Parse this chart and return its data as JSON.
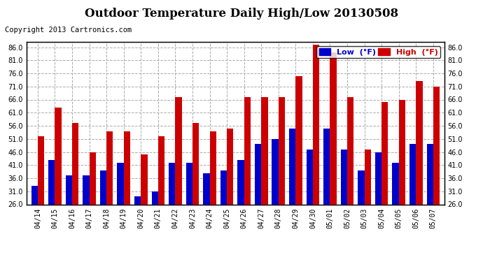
{
  "title": "Outdoor Temperature Daily High/Low 20130508",
  "copyright": "Copyright 2013 Cartronics.com",
  "legend_low": "Low  (°F)",
  "legend_high": "High  (°F)",
  "dates": [
    "04/14",
    "04/15",
    "04/16",
    "04/17",
    "04/18",
    "04/19",
    "04/20",
    "04/21",
    "04/22",
    "04/23",
    "04/24",
    "04/25",
    "04/26",
    "04/27",
    "04/28",
    "04/29",
    "04/30",
    "05/01",
    "05/02",
    "05/03",
    "05/04",
    "05/05",
    "05/06",
    "05/07"
  ],
  "lows": [
    33,
    43,
    37,
    37,
    39,
    42,
    29,
    31,
    42,
    42,
    38,
    39,
    43,
    49,
    51,
    55,
    47,
    55,
    47,
    39,
    46,
    42,
    49,
    49
  ],
  "highs": [
    52,
    63,
    57,
    46,
    54,
    54,
    45,
    52,
    67,
    57,
    54,
    55,
    67,
    67,
    67,
    75,
    87,
    84,
    67,
    47,
    65,
    66,
    73,
    71
  ],
  "ylim": [
    26.0,
    88.0
  ],
  "yticks": [
    26.0,
    31.0,
    36.0,
    41.0,
    46.0,
    51.0,
    56.0,
    61.0,
    66.0,
    71.0,
    76.0,
    81.0,
    86.0
  ],
  "bar_width": 0.38,
  "low_color": "#0000cc",
  "high_color": "#cc0000",
  "bg_color": "#ffffff",
  "grid_color": "#aaaaaa",
  "title_fontsize": 12,
  "copyright_fontsize": 7.5,
  "tick_fontsize": 7,
  "legend_fontsize": 8
}
